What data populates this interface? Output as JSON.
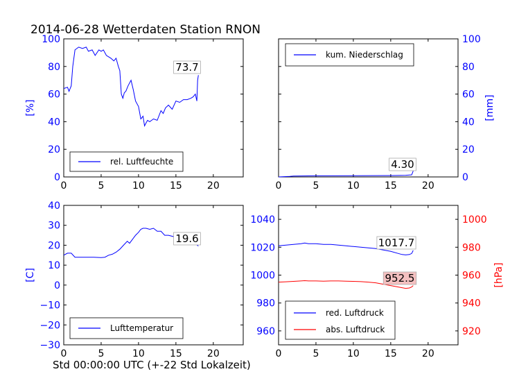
{
  "title": "2014-06-28 Wetterdaten Station RNON",
  "xlabel": "Std 00:00:00 UTC (+-22 Std Lokalzeit)",
  "colors": {
    "blue": "#0000ff",
    "red": "#ff0000",
    "text": "#000000"
  },
  "chart_data": [
    {
      "type": "line",
      "name": "humidity",
      "ylabel": "[%]",
      "xlim": [
        0,
        24
      ],
      "ylim": [
        0,
        100
      ],
      "xticks": [
        "0",
        "5",
        "10",
        "15",
        "20"
      ],
      "yticks": [
        "0",
        "20",
        "40",
        "60",
        "80",
        "100"
      ],
      "legend": "rel. Luftfeuchte",
      "legend_position": "lower-left",
      "annotation": "73.7",
      "series": [
        {
          "name": "rel. Luftfeuchte",
          "color": "#0000ff",
          "x": [
            0,
            0.5,
            0.7,
            1.0,
            1.2,
            1.5,
            2.0,
            2.5,
            3.0,
            3.3,
            3.8,
            4.2,
            4.7,
            5.0,
            5.3,
            5.7,
            6.0,
            6.3,
            6.7,
            7.0,
            7.3,
            7.5,
            7.7,
            7.9,
            8.1,
            8.3,
            8.6,
            9.0,
            9.3,
            9.6,
            10.0,
            10.3,
            10.6,
            10.8,
            11.0,
            11.2,
            11.5,
            12.0,
            12.5,
            13.0,
            13.3,
            13.6,
            14.0,
            14.5,
            15.0,
            15.5,
            16.0,
            16.5,
            17.0,
            17.3,
            17.6,
            17.8,
            17.9,
            18.0
          ],
          "y": [
            64,
            65,
            62,
            66,
            80,
            92,
            94,
            93,
            94,
            91,
            92,
            88,
            92,
            91,
            92,
            88,
            87,
            86,
            84,
            86,
            80,
            77,
            60,
            57,
            61,
            62,
            66,
            70,
            63,
            55,
            51,
            42,
            44,
            37,
            39,
            41,
            40,
            42,
            41,
            48,
            46,
            50,
            52,
            49,
            55,
            54,
            56,
            56,
            57,
            58,
            60,
            55,
            70,
            73.7
          ]
        }
      ]
    },
    {
      "type": "line",
      "name": "precipitation",
      "ylabel": "[mm]",
      "axis_side": "right",
      "xlim": [
        0,
        24
      ],
      "ylim": [
        0,
        100
      ],
      "xticks": [
        "0",
        "5",
        "10",
        "15",
        "20"
      ],
      "yticks": [
        "0",
        "20",
        "40",
        "60",
        "80",
        "100"
      ],
      "legend": "kum. Niederschlag",
      "legend_position": "top-left",
      "annotation": "4.30",
      "series": [
        {
          "name": "kum. Niederschlag",
          "color": "#0000ff",
          "x": [
            0,
            1.5,
            2.0,
            5.0,
            10.0,
            15.0,
            17.0,
            17.8,
            18.0
          ],
          "y": [
            0,
            0.4,
            0.6,
            0.8,
            0.9,
            1.0,
            1.2,
            1.5,
            4.3
          ]
        }
      ]
    },
    {
      "type": "line",
      "name": "temperature",
      "ylabel": "[C]",
      "xlim": [
        0,
        24
      ],
      "ylim": [
        -30,
        40
      ],
      "xticks": [
        "0",
        "5",
        "10",
        "15",
        "20"
      ],
      "yticks": [
        "-30",
        "-20",
        "-10",
        "0",
        "10",
        "20",
        "30",
        "40"
      ],
      "legend": "Lufttemperatur",
      "legend_position": "lower-left",
      "annotation": "19.6",
      "series": [
        {
          "name": "Lufttemperatur",
          "color": "#0000ff",
          "x": [
            0,
            0.5,
            1.0,
            1.5,
            2.0,
            3.0,
            4.0,
            5.0,
            5.5,
            6.0,
            6.5,
            7.0,
            7.5,
            8.0,
            8.5,
            8.8,
            9.2,
            9.6,
            10.0,
            10.3,
            10.6,
            11.0,
            11.5,
            12.0,
            12.5,
            13.0,
            13.5,
            14.0,
            14.5,
            15.0,
            15.5,
            16.0,
            16.5,
            17.0,
            17.5,
            18.0
          ],
          "y": [
            15,
            16,
            16,
            14,
            14,
            14,
            14,
            13.8,
            14,
            15,
            15.5,
            16.5,
            18,
            20,
            22,
            21,
            23,
            25,
            26.5,
            28,
            28.5,
            28.5,
            28,
            28.5,
            27,
            27,
            25,
            25,
            24.5,
            24,
            23,
            22.5,
            22,
            21.5,
            21,
            19.6
          ]
        }
      ]
    },
    {
      "type": "line",
      "name": "pressure",
      "xlim": [
        0,
        24
      ],
      "ylim": [
        950,
        1050
      ],
      "xticks": [
        "0",
        "5",
        "10",
        "15",
        "20"
      ],
      "yticks": [
        "960",
        "980",
        "1000",
        "1020",
        "1040"
      ],
      "right_ylabel": "[hPa]",
      "right_ylim": [
        910,
        1010
      ],
      "right_yticks": [
        "920",
        "940",
        "960",
        "980",
        "1000"
      ],
      "legend": [
        "red. Luftdruck",
        "abs. Luftdruck"
      ],
      "legend_position": "lower-left",
      "annotations": [
        "1017.7",
        "952.5"
      ],
      "series": [
        {
          "name": "red. Luftdruck",
          "color": "#0000ff",
          "axis": "left",
          "x": [
            0,
            1,
            2,
            3,
            3.5,
            4,
            5,
            6,
            7,
            8,
            9,
            10,
            11,
            12,
            13,
            14,
            15,
            16,
            16.5,
            17,
            17.5,
            17.8,
            18.0
          ],
          "y": [
            1021,
            1021.5,
            1022,
            1022.5,
            1023,
            1022.5,
            1022.5,
            1022,
            1022,
            1021.5,
            1021,
            1020.5,
            1020,
            1019.5,
            1019,
            1018,
            1017,
            1015.5,
            1014.8,
            1014.5,
            1014.8,
            1015.5,
            1017.7
          ]
        },
        {
          "name": "abs. Luftdruck",
          "color": "#ff0000",
          "axis": "right",
          "x": [
            0,
            1,
            2,
            3,
            3.5,
            4,
            5,
            6,
            7,
            8,
            9,
            10,
            11,
            12,
            13,
            14,
            15,
            16,
            16.5,
            17,
            17.5,
            17.8,
            18.0
          ],
          "y": [
            955,
            955.2,
            955.5,
            955.8,
            956,
            955.8,
            955.8,
            955.6,
            955.8,
            955.8,
            955.6,
            955.5,
            955.3,
            955,
            954.5,
            953.5,
            952.5,
            951.5,
            951,
            950.5,
            950.8,
            951.5,
            952.5
          ]
        }
      ]
    }
  ]
}
